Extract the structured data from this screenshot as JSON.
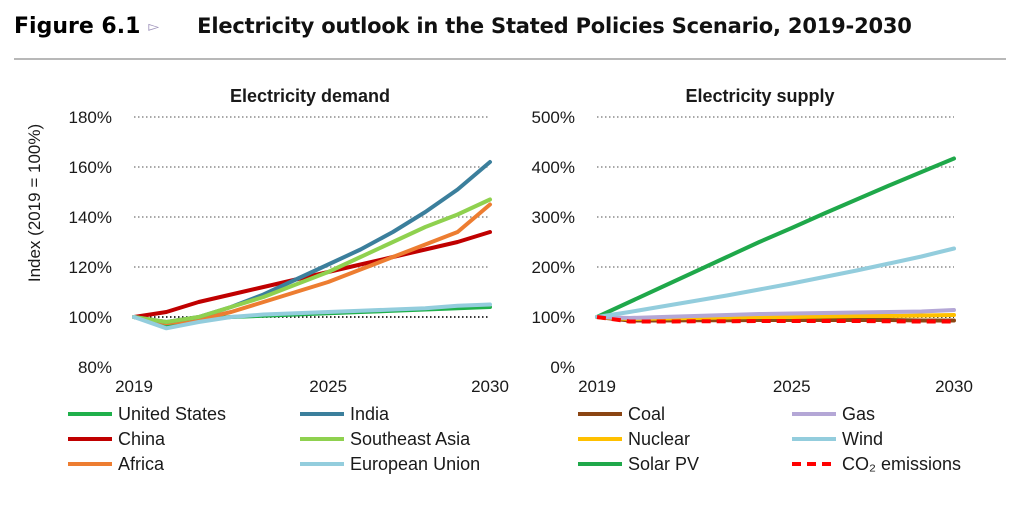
{
  "figure": {
    "number": "Figure 6.1",
    "arrow": "▻",
    "title": "Electricity outlook in the Stated Policies Scenario, 2019-2030"
  },
  "colors": {
    "united_states": "#1fb04b",
    "india": "#3b7f9c",
    "china": "#c00000",
    "southeast_asia": "#8fd14f",
    "africa": "#ed7d31",
    "european_union": "#93cddd",
    "coal": "#8b4513",
    "gas": "#b4a7d6",
    "nuclear": "#ffc000",
    "wind": "#93cddd",
    "solar_pv": "#1fa84a",
    "co2": "#ff0000",
    "grid": "#8c8c8c",
    "reference_line": "#1a1a1a"
  },
  "chart_data": [
    {
      "type": "line",
      "title": "Electricity demand",
      "ylabel": "Index (2019 = 100%)",
      "xlabel": "",
      "x": [
        2019,
        2020,
        2021,
        2022,
        2023,
        2024,
        2025,
        2026,
        2027,
        2028,
        2029,
        2030
      ],
      "xticks": [
        "2019",
        "2025",
        "2030"
      ],
      "ylim": [
        0.8,
        1.8
      ],
      "yticks": [
        "80%",
        "100%",
        "120%",
        "140%",
        "160%",
        "180%"
      ],
      "grid": "dotted horizontal",
      "series": [
        {
          "name": "United States",
          "color_key": "united_states",
          "values": [
            1.0,
            0.97,
            0.99,
            1.0,
            1.005,
            1.01,
            1.015,
            1.02,
            1.025,
            1.03,
            1.035,
            1.04
          ]
        },
        {
          "name": "China",
          "color_key": "china",
          "values": [
            1.0,
            1.02,
            1.06,
            1.09,
            1.12,
            1.15,
            1.18,
            1.21,
            1.24,
            1.27,
            1.3,
            1.34
          ]
        },
        {
          "name": "Africa",
          "color_key": "africa",
          "values": [
            1.0,
            0.975,
            0.99,
            1.02,
            1.06,
            1.1,
            1.14,
            1.19,
            1.24,
            1.29,
            1.34,
            1.45
          ]
        },
        {
          "name": "India",
          "color_key": "india",
          "values": [
            1.0,
            0.98,
            1.0,
            1.04,
            1.09,
            1.15,
            1.21,
            1.27,
            1.34,
            1.42,
            1.51,
            1.62
          ]
        },
        {
          "name": "Southeast Asia",
          "color_key": "southeast_asia",
          "values": [
            1.0,
            0.98,
            1.0,
            1.04,
            1.08,
            1.13,
            1.18,
            1.24,
            1.3,
            1.36,
            1.41,
            1.47
          ]
        },
        {
          "name": "European Union",
          "color_key": "european_union",
          "values": [
            1.0,
            0.955,
            0.98,
            1.0,
            1.01,
            1.015,
            1.02,
            1.025,
            1.03,
            1.035,
            1.045,
            1.05
          ]
        }
      ]
    },
    {
      "type": "line",
      "title": "Electricity supply",
      "ylabel": "",
      "xlabel": "",
      "x": [
        2019,
        2020,
        2021,
        2022,
        2023,
        2024,
        2025,
        2026,
        2027,
        2028,
        2029,
        2030
      ],
      "xticks": [
        "2019",
        "2025",
        "2030"
      ],
      "ylim": [
        0,
        5
      ],
      "yticks": [
        "0%",
        "100%",
        "200%",
        "300%",
        "400%",
        "500%"
      ],
      "grid": "dotted horizontal",
      "series": [
        {
          "name": "Coal",
          "color_key": "coal",
          "values": [
            1.0,
            0.93,
            0.93,
            0.935,
            0.935,
            0.94,
            0.94,
            0.94,
            0.94,
            0.94,
            0.93,
            0.93
          ]
        },
        {
          "name": "Nuclear",
          "color_key": "nuclear",
          "values": [
            1.0,
            0.96,
            0.97,
            0.98,
            0.99,
            1.0,
            1.0,
            1.01,
            1.02,
            1.02,
            1.03,
            1.04
          ]
        },
        {
          "name": "Solar PV",
          "color_key": "solar_pv",
          "values": [
            1.0,
            1.3,
            1.6,
            1.9,
            2.2,
            2.5,
            2.78,
            3.07,
            3.35,
            3.63,
            3.9,
            4.17
          ]
        },
        {
          "name": "Gas",
          "color_key": "gas",
          "values": [
            1.0,
            0.98,
            1.0,
            1.02,
            1.04,
            1.06,
            1.07,
            1.08,
            1.09,
            1.1,
            1.11,
            1.14
          ]
        },
        {
          "name": "Wind",
          "color_key": "wind",
          "values": [
            1.0,
            1.1,
            1.21,
            1.32,
            1.43,
            1.55,
            1.67,
            1.8,
            1.93,
            2.07,
            2.21,
            2.37
          ]
        },
        {
          "name": "CO₂ emissions",
          "color_key": "co2",
          "dashed": true,
          "values": [
            1.0,
            0.91,
            0.91,
            0.915,
            0.915,
            0.92,
            0.92,
            0.92,
            0.92,
            0.915,
            0.91,
            0.91
          ]
        }
      ]
    }
  ]
}
